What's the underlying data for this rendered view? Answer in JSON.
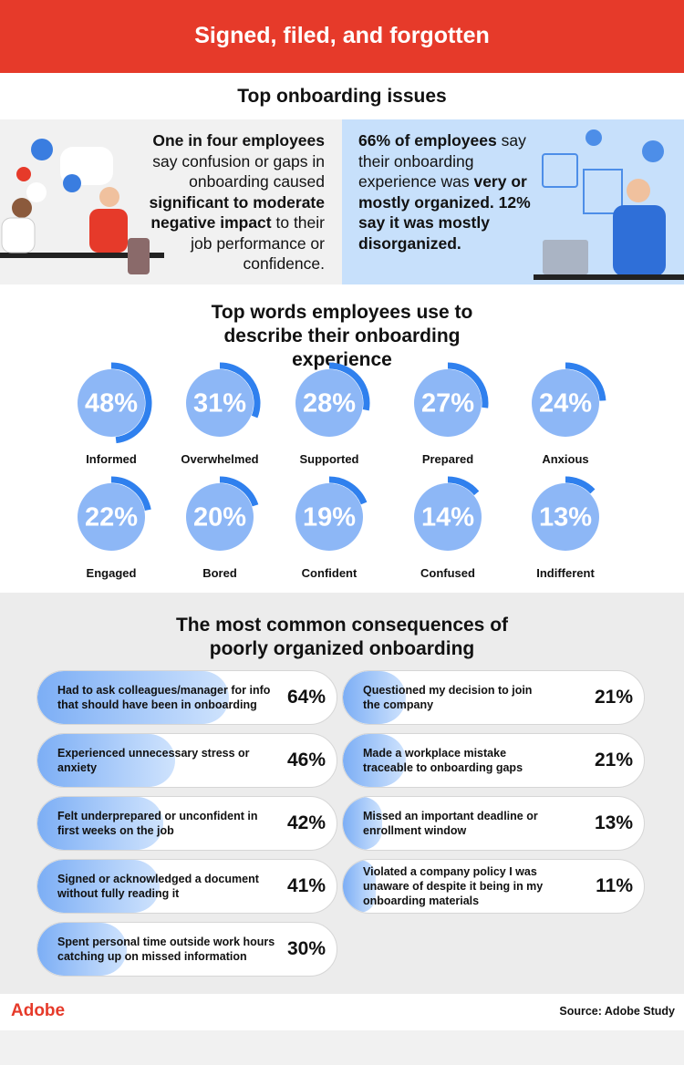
{
  "header": {
    "title": "Signed, filed, and forgotten"
  },
  "issues": {
    "title": "Top onboarding issues",
    "left": {
      "runs": [
        {
          "text": "One in four employees",
          "bold": true
        },
        {
          "text": " say confusion or gaps in onboarding caused ",
          "bold": false
        },
        {
          "text": "significant to moderate negative impact",
          "bold": true
        },
        {
          "text": " to their job performance or confidence.",
          "bold": false
        }
      ]
    },
    "right": {
      "runs": [
        {
          "text": "66% of employees",
          "bold": true
        },
        {
          "text": " say their onboarding experience was ",
          "bold": false
        },
        {
          "text": "very or mostly organized. 12% say it was mostly disorganized.",
          "bold": true
        }
      ]
    }
  },
  "words": {
    "title": "Top words employees use to describe their onboarding experience",
    "items": [
      {
        "label": "Informed",
        "value": 48,
        "value_label": "48%"
      },
      {
        "label": "Overwhelmed",
        "value": 31,
        "value_label": "31%"
      },
      {
        "label": "Supported",
        "value": 28,
        "value_label": "28%"
      },
      {
        "label": "Prepared",
        "value": 27,
        "value_label": "27%"
      },
      {
        "label": "Anxious",
        "value": 24,
        "value_label": "24%"
      },
      {
        "label": "Engaged",
        "value": 22,
        "value_label": "22%"
      },
      {
        "label": "Bored",
        "value": 20,
        "value_label": "20%"
      },
      {
        "label": "Confident",
        "value": 19,
        "value_label": "19%"
      },
      {
        "label": "Confused",
        "value": 14,
        "value_label": "14%"
      },
      {
        "label": "Indifferent",
        "value": 13,
        "value_label": "13%"
      }
    ]
  },
  "consequences": {
    "title": "The most common consequences of poorly organized onboarding",
    "items": [
      {
        "label": "Had to ask colleagues/manager for info that should have been in onboarding",
        "value": 64,
        "value_label": "64%"
      },
      {
        "label": "Experienced unnecessary stress or anxiety",
        "value": 46,
        "value_label": "46%"
      },
      {
        "label": "Felt underprepared or unconfident in first weeks on the job",
        "value": 42,
        "value_label": "42%"
      },
      {
        "label": "Signed or acknowledged a document without fully reading it",
        "value": 41,
        "value_label": "41%"
      },
      {
        "label": "Spent personal time outside work hours catching up on missed information",
        "value": 30,
        "value_label": "30%"
      },
      {
        "label": "Questioned my decision to join the company",
        "value": 21,
        "value_label": "21%"
      },
      {
        "label": "Made a workplace mistake traceable to onboarding gaps",
        "value": 21,
        "value_label": "21%"
      },
      {
        "label": "Missed an important deadline or enrollment window",
        "value": 13,
        "value_label": "13%"
      },
      {
        "label": "Violated a company policy I was unaware of despite it being in my onboarding materials",
        "value": 11,
        "value_label": "11%"
      }
    ]
  },
  "footer": {
    "logo": "Adobe",
    "source": "Source: Adobe Study"
  }
}
